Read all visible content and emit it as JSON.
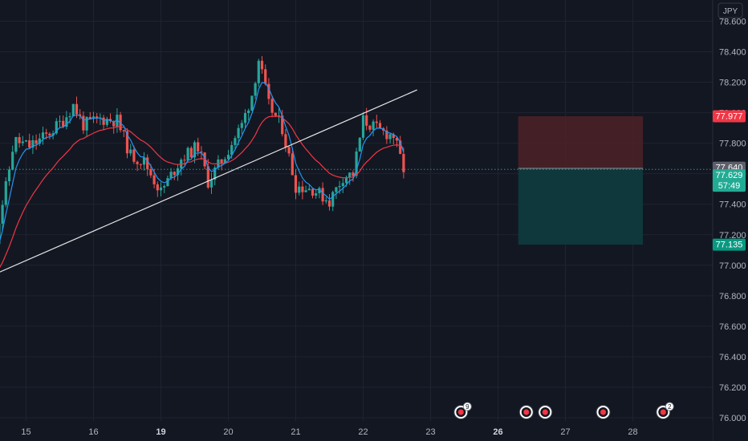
{
  "chart_data": {
    "type": "candlestick",
    "currency": "JPY",
    "ylim": [
      76.0,
      78.65
    ],
    "y_ticks": [
      "76.000",
      "76.200",
      "76.400",
      "76.600",
      "76.800",
      "77.000",
      "77.200",
      "77.400",
      "77.600",
      "77.800",
      "78.000",
      "78.200",
      "78.400",
      "78.600"
    ],
    "x_ticks": [
      {
        "label": "15",
        "bold": false,
        "pos": 0.5
      },
      {
        "label": "16",
        "bold": false,
        "pos": 1.5
      },
      {
        "label": "19",
        "bold": true,
        "pos": 2.5
      },
      {
        "label": "20",
        "bold": false,
        "pos": 3.5
      },
      {
        "label": "21",
        "bold": false,
        "pos": 4.5
      },
      {
        "label": "22",
        "bold": false,
        "pos": 5.5
      },
      {
        "label": "23",
        "bold": false,
        "pos": 6.5
      },
      {
        "label": "26",
        "bold": true,
        "pos": 7.5
      },
      {
        "label": "27",
        "bold": false,
        "pos": 8.5
      },
      {
        "label": "28",
        "bold": false,
        "pos": 9.5
      }
    ],
    "price_key_points": [
      {
        "t": 0.0,
        "p": 77.05
      },
      {
        "t": 0.12,
        "p": 77.35
      },
      {
        "t": 0.22,
        "p": 77.55
      },
      {
        "t": 0.32,
        "p": 77.82
      },
      {
        "t": 0.55,
        "p": 77.78
      },
      {
        "t": 0.8,
        "p": 77.85
      },
      {
        "t": 1.05,
        "p": 77.95
      },
      {
        "t": 1.2,
        "p": 78.05
      },
      {
        "t": 1.35,
        "p": 77.92
      },
      {
        "t": 1.6,
        "p": 77.96
      },
      {
        "t": 1.85,
        "p": 77.95
      },
      {
        "t": 2.05,
        "p": 77.72
      },
      {
        "t": 2.25,
        "p": 77.68
      },
      {
        "t": 2.5,
        "p": 77.48
      },
      {
        "t": 2.8,
        "p": 77.7
      },
      {
        "t": 3.05,
        "p": 77.78
      },
      {
        "t": 3.2,
        "p": 77.55
      },
      {
        "t": 3.45,
        "p": 77.72
      },
      {
        "t": 3.7,
        "p": 77.92
      },
      {
        "t": 3.85,
        "p": 78.12
      },
      {
        "t": 3.95,
        "p": 78.35
      },
      {
        "t": 4.1,
        "p": 78.05
      },
      {
        "t": 4.3,
        "p": 77.9
      },
      {
        "t": 4.5,
        "p": 77.52
      },
      {
        "t": 4.75,
        "p": 77.5
      },
      {
        "t": 5.0,
        "p": 77.42
      },
      {
        "t": 5.2,
        "p": 77.58
      },
      {
        "t": 5.35,
        "p": 77.6
      },
      {
        "t": 5.5,
        "p": 77.95
      },
      {
        "t": 5.75,
        "p": 77.88
      },
      {
        "t": 5.95,
        "p": 77.85
      },
      {
        "t": 6.1,
        "p": 77.63
      }
    ],
    "ema_fast_period": 5,
    "ema_slow_period": 20,
    "trendline": [
      {
        "t": -0.8,
        "p": 76.78
      },
      {
        "t": 6.3,
        "p": 78.15
      }
    ],
    "position": {
      "t_start": 7.8,
      "t_end": 9.65,
      "stop": 77.977,
      "entry": 77.635,
      "target": 77.135
    },
    "current_price": 77.629,
    "price_labels": [
      {
        "text": "77.977",
        "value": 77.977,
        "color": "#f23645"
      },
      {
        "text": "77.640",
        "value": 77.64,
        "color": "#5d606b"
      },
      {
        "text": "77.629",
        "value": 77.629,
        "color": "#22ab94",
        "sub": "57:49"
      },
      {
        "text": "77.135",
        "value": 77.135,
        "color": "#089981"
      }
    ],
    "event_markers": [
      {
        "t": 6.95,
        "badge": "9"
      },
      {
        "t": 7.92,
        "badge": ""
      },
      {
        "t": 8.2,
        "badge": ""
      },
      {
        "t": 9.06,
        "badge": ""
      },
      {
        "t": 9.95,
        "badge": "2"
      }
    ],
    "colors": {
      "up": "#26a69a",
      "down": "#ef5350",
      "ema_fast": "#2196f3",
      "ema_slow": "#f23645",
      "trendline": "#e6e6e6",
      "stop_zone": "#4a2127",
      "target_zone": "#0e3a3d",
      "grid": "#1f2330"
    }
  }
}
